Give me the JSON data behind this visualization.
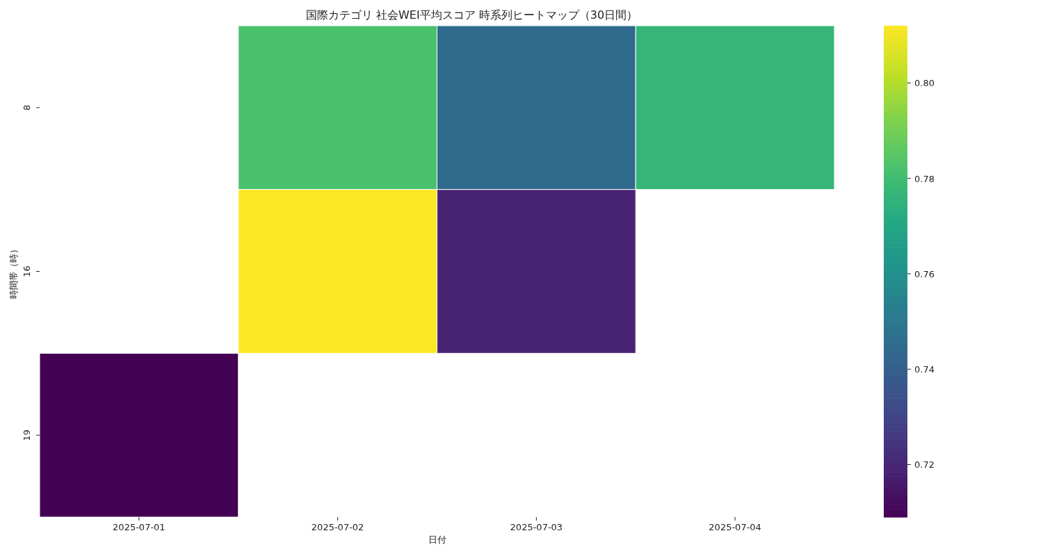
{
  "chart_data": {
    "type": "heatmap",
    "title": "国際カテゴリ 社会WEI平均スコア 時系列ヒートマップ（30日間）",
    "xlabel": "日付",
    "ylabel": "時間帯（時）",
    "categories": [
      "2025-07-01",
      "2025-07-02",
      "2025-07-03",
      "2025-07-04"
    ],
    "y_categories": [
      "8",
      "16",
      "19"
    ],
    "cells": [
      [
        null,
        0.782,
        0.745,
        0.777
      ],
      [
        null,
        0.812,
        0.719,
        null
      ],
      [
        0.709,
        null,
        null,
        null
      ]
    ],
    "clim": [
      0.709,
      0.812
    ],
    "cticks": [
      {
        "value": 0.72,
        "label": "0.72"
      },
      {
        "value": 0.74,
        "label": "0.74"
      },
      {
        "value": 0.76,
        "label": "0.76"
      },
      {
        "value": 0.78,
        "label": "0.78"
      },
      {
        "value": 0.8,
        "label": "0.80"
      }
    ]
  }
}
